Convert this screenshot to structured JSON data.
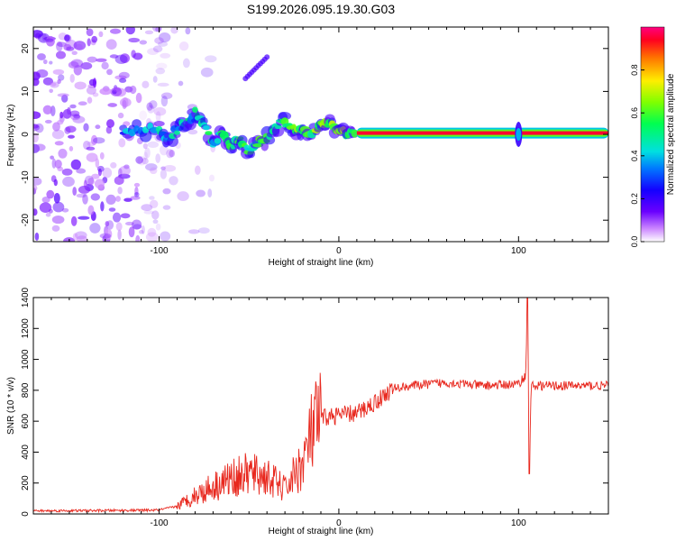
{
  "title": "S199.2026.095.19.30.G03",
  "chart_data": [
    {
      "type": "heatmap",
      "xlabel": "Height of straight line (km)",
      "ylabel": "Frequency (Hz)",
      "xlim": [
        -170,
        150
      ],
      "ylim": [
        -25,
        25
      ],
      "xticks": [
        -100,
        0,
        100
      ],
      "yticks": [
        20,
        10,
        0,
        -10,
        -20
      ],
      "colorbar": {
        "label": "Normalized spectral amplitude",
        "range": [
          0,
          1
        ],
        "ticks": [
          0.0,
          0.2,
          0.4,
          0.6,
          0.8
        ]
      },
      "features": {
        "noise_region_x": [
          -170,
          -95
        ],
        "ridge_start_x": -120,
        "stable_line_from_x": 10,
        "stable_line_freq": 0.3,
        "spike_at_x": 100,
        "secondary_streak": {
          "x": [
            -52,
            -40
          ],
          "freq": [
            13,
            18
          ]
        }
      }
    },
    {
      "type": "line",
      "xlabel": "Height of straight line (km)",
      "ylabel": "SNR (10 * v/v)",
      "xlim": [
        -170,
        150
      ],
      "ylim": [
        0,
        1400
      ],
      "xticks": [
        -100,
        0,
        100
      ],
      "yticks": [
        0,
        200,
        400,
        600,
        800,
        1000,
        1200,
        1400
      ],
      "series": [
        {
          "name": "SNR",
          "color": "#e8281e",
          "x": [
            -170,
            -130,
            -100,
            -90,
            -80,
            -70,
            -60,
            -50,
            -40,
            -30,
            -25,
            -20,
            -15,
            -10,
            0,
            10,
            20,
            30,
            40,
            60,
            80,
            100,
            104,
            105,
            106,
            107,
            110,
            130,
            150
          ],
          "y": [
            20,
            22,
            25,
            50,
            120,
            180,
            230,
            260,
            240,
            160,
            250,
            330,
            520,
            620,
            640,
            650,
            720,
            810,
            830,
            850,
            830,
            840,
            900,
            1400,
            260,
            830,
            830,
            830,
            830
          ]
        }
      ]
    }
  ]
}
